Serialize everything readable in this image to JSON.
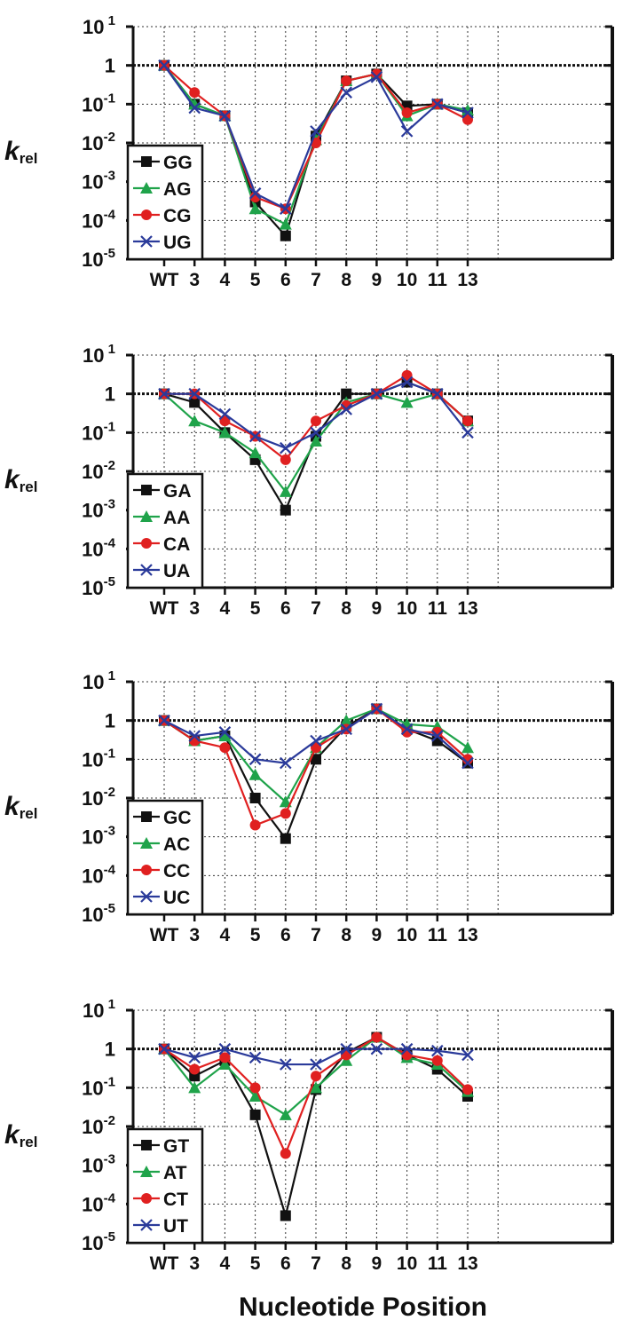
{
  "figure": {
    "xlabel": "Nucleotide Position",
    "ylabel_main": "k",
    "ylabel_sub": "rel"
  },
  "chart_data": [
    {
      "type": "line",
      "y_scale": "log",
      "ylim": [
        1e-05,
        10
      ],
      "y_ticks": [
        {
          "base": "10",
          "exp": " 1"
        },
        {
          "base": "1",
          "exp": ""
        },
        {
          "base": "10",
          "exp": "-1"
        },
        {
          "base": "10",
          "exp": "-2"
        },
        {
          "base": "10",
          "exp": "-3"
        },
        {
          "base": "10",
          "exp": "-4"
        },
        {
          "base": "10",
          "exp": "-5"
        }
      ],
      "categories": [
        "WT",
        "3",
        "4",
        "5",
        "6",
        "7",
        "8",
        "9",
        "10",
        "11",
        "13"
      ],
      "grid": true,
      "reference_line": 1,
      "legend_position": "bottom-left",
      "series": [
        {
          "name": "GG",
          "color": "#111111",
          "marker": "square",
          "values": [
            1,
            0.1,
            0.05,
            0.0003,
            4e-05,
            0.015,
            0.4,
            0.6,
            0.09,
            0.1,
            0.06
          ]
        },
        {
          "name": "AG",
          "color": "#1fa34a",
          "marker": "triangle",
          "values": [
            1,
            0.1,
            0.05,
            0.0002,
            8e-05,
            0.012,
            0.4,
            0.6,
            0.05,
            0.1,
            0.07
          ]
        },
        {
          "name": "CG",
          "color": "#e02020",
          "marker": "circle",
          "values": [
            1,
            0.2,
            0.05,
            0.0004,
            0.0002,
            0.01,
            0.4,
            0.6,
            0.06,
            0.1,
            0.04
          ]
        },
        {
          "name": "UG",
          "color": "#2a3a9a",
          "marker": "x",
          "values": [
            1,
            0.08,
            0.05,
            0.0005,
            0.0002,
            0.02,
            0.2,
            0.5,
            0.02,
            0.1,
            0.06
          ]
        }
      ]
    },
    {
      "type": "line",
      "y_scale": "log",
      "ylim": [
        1e-05,
        10
      ],
      "y_ticks": [
        {
          "base": "10",
          "exp": " 1"
        },
        {
          "base": "1",
          "exp": ""
        },
        {
          "base": "10",
          "exp": "-1"
        },
        {
          "base": "10",
          "exp": "-2"
        },
        {
          "base": "10",
          "exp": "-3"
        },
        {
          "base": "10",
          "exp": "-4"
        },
        {
          "base": "10",
          "exp": "-5"
        }
      ],
      "categories": [
        "WT",
        "3",
        "4",
        "5",
        "6",
        "7",
        "8",
        "9",
        "10",
        "11",
        "13"
      ],
      "grid": true,
      "reference_line": 1,
      "legend_position": "bottom-left",
      "series": [
        {
          "name": "GA",
          "color": "#111111",
          "marker": "square",
          "values": [
            1,
            0.6,
            0.1,
            0.02,
            0.001,
            0.08,
            1,
            1,
            2,
            1,
            0.2
          ]
        },
        {
          "name": "AA",
          "color": "#1fa34a",
          "marker": "triangle",
          "values": [
            1,
            0.2,
            0.1,
            0.03,
            0.003,
            0.06,
            0.6,
            1,
            0.6,
            1,
            0.2
          ]
        },
        {
          "name": "CA",
          "color": "#e02020",
          "marker": "circle",
          "values": [
            1,
            1,
            0.2,
            0.08,
            0.02,
            0.2,
            0.5,
            1,
            3,
            1,
            0.2
          ]
        },
        {
          "name": "UA",
          "color": "#2a3a9a",
          "marker": "x",
          "values": [
            1,
            1,
            0.3,
            0.08,
            0.04,
            0.1,
            0.4,
            1,
            2,
            1,
            0.1
          ]
        }
      ]
    },
    {
      "type": "line",
      "y_scale": "log",
      "ylim": [
        1e-05,
        10
      ],
      "y_ticks": [
        {
          "base": "10",
          "exp": " 1"
        },
        {
          "base": "1",
          "exp": ""
        },
        {
          "base": "10",
          "exp": "-1"
        },
        {
          "base": "10",
          "exp": "-2"
        },
        {
          "base": "10",
          "exp": "-3"
        },
        {
          "base": "10",
          "exp": "-4"
        },
        {
          "base": "10",
          "exp": "-5"
        }
      ],
      "categories": [
        "WT",
        "3",
        "4",
        "5",
        "6",
        "7",
        "8",
        "9",
        "10",
        "11",
        "13"
      ],
      "grid": true,
      "reference_line": 1,
      "legend_position": "bottom-left",
      "series": [
        {
          "name": "GC",
          "color": "#111111",
          "marker": "square",
          "values": [
            1,
            0.3,
            0.4,
            0.01,
            0.0009,
            0.1,
            0.7,
            2,
            0.6,
            0.3,
            0.08
          ]
        },
        {
          "name": "AC",
          "color": "#1fa34a",
          "marker": "triangle",
          "values": [
            1,
            0.3,
            0.4,
            0.04,
            0.008,
            0.2,
            1,
            2,
            0.8,
            0.7,
            0.2
          ]
        },
        {
          "name": "CC",
          "color": "#e02020",
          "marker": "circle",
          "values": [
            1,
            0.3,
            0.2,
            0.002,
            0.004,
            0.2,
            0.6,
            2,
            0.5,
            0.5,
            0.1
          ]
        },
        {
          "name": "UC",
          "color": "#2a3a9a",
          "marker": "x",
          "values": [
            1,
            0.4,
            0.5,
            0.1,
            0.08,
            0.3,
            0.6,
            2,
            0.6,
            0.4,
            0.08
          ]
        }
      ]
    },
    {
      "type": "line",
      "y_scale": "log",
      "ylim": [
        1e-05,
        10
      ],
      "y_ticks": [
        {
          "base": "10",
          "exp": " 1"
        },
        {
          "base": "1",
          "exp": ""
        },
        {
          "base": "10",
          "exp": "-1"
        },
        {
          "base": "10",
          "exp": "-2"
        },
        {
          "base": "10",
          "exp": "-3"
        },
        {
          "base": "10",
          "exp": "-4"
        },
        {
          "base": "10",
          "exp": "-5"
        }
      ],
      "categories": [
        "WT",
        "3",
        "4",
        "5",
        "6",
        "7",
        "8",
        "9",
        "10",
        "11",
        "13"
      ],
      "grid": true,
      "reference_line": 1,
      "legend_position": "bottom-left",
      "series": [
        {
          "name": "GT",
          "color": "#111111",
          "marker": "square",
          "values": [
            1,
            0.2,
            0.5,
            0.02,
            5e-05,
            0.09,
            0.8,
            2,
            0.7,
            0.3,
            0.06
          ]
        },
        {
          "name": "AT",
          "color": "#1fa34a",
          "marker": "triangle",
          "values": [
            1,
            0.1,
            0.4,
            0.06,
            0.02,
            0.1,
            0.5,
            2,
            0.6,
            0.4,
            0.08
          ]
        },
        {
          "name": "CT",
          "color": "#e02020",
          "marker": "circle",
          "values": [
            1,
            0.3,
            0.6,
            0.1,
            0.002,
            0.2,
            0.7,
            2,
            0.7,
            0.5,
            0.09
          ]
        },
        {
          "name": "UT",
          "color": "#2a3a9a",
          "marker": "x",
          "values": [
            1,
            0.6,
            1,
            0.6,
            0.4,
            0.4,
            1,
            1,
            1,
            0.9,
            0.7
          ]
        }
      ]
    }
  ]
}
